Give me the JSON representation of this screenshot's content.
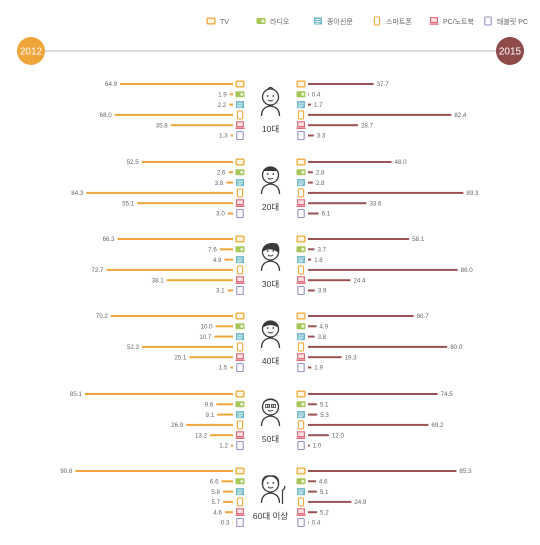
{
  "legend": [
    {
      "icon": "tv-icon",
      "label": "TV",
      "color": "#f2a93b"
    },
    {
      "icon": "radio-icon",
      "label": "라디오",
      "color": "#a6c65a"
    },
    {
      "icon": "newspaper-icon",
      "label": "종이신문",
      "color": "#6bb8c9"
    },
    {
      "icon": "smartphone-icon",
      "label": "스마트폰",
      "color": "#f2a93b"
    },
    {
      "icon": "pc-notebook-icon",
      "label": "PC/노트북",
      "color": "#e0707e"
    },
    {
      "icon": "tablet-pc-icon",
      "label": "태블릿 PC",
      "color": "#9b8fbf"
    }
  ],
  "colors": {
    "left_accent": "#f0a53a",
    "right_accent": "#8f4a4a",
    "left_bar": "#f0a53a",
    "right_bar": "#9a5252",
    "text": "#666666"
  },
  "chart_data": {
    "type": "bar",
    "layout": "diverging",
    "left_label": "2012",
    "right_label": "2015",
    "media": [
      "TV",
      "라디오",
      "종이신문",
      "스마트폰",
      "PC/노트북",
      "태블릿 PC"
    ],
    "groups": [
      {
        "label": "10대",
        "y2012": [
          64.9,
          1.9,
          2.2,
          68.0,
          35.8,
          1.3
        ],
        "y2015": [
          37.7,
          0.4,
          1.7,
          82.4,
          28.7,
          3.3
        ],
        "labels_2012": [
          "64.9",
          "1.9",
          "2.2",
          "68.0",
          "35.8",
          "1.3"
        ],
        "labels_2015": [
          "37.7",
          "0.4",
          "1.7",
          "82.4",
          "28.7",
          "3.3"
        ]
      },
      {
        "label": "20대",
        "y2012": [
          52.5,
          2.6,
          3.8,
          84.3,
          55.1,
          3.0
        ],
        "y2015": [
          48.0,
          2.8,
          2.8,
          89.3,
          33.6,
          6.1
        ],
        "labels_2012": [
          "52.5",
          "2.6",
          "3.8",
          "84.3",
          "55.1",
          "3.0"
        ],
        "labels_2015": [
          "48.0",
          "2.8",
          "2.8",
          "89.3",
          "33.6",
          "6.1"
        ]
      },
      {
        "label": "30대",
        "y2012": [
          66.3,
          7.6,
          4.9,
          72.7,
          38.1,
          3.1
        ],
        "y2015": [
          58.1,
          3.7,
          1.8,
          86.0,
          24.4,
          3.9
        ],
        "labels_2012": [
          "66.3",
          "7.6",
          "4.9",
          "72.7",
          "38.1",
          "3.1"
        ],
        "labels_2015": [
          "58.1",
          "3.7",
          "1.8",
          "86.0",
          "24.4",
          "3.9"
        ]
      },
      {
        "label": "40대",
        "y2012": [
          70.2,
          10.0,
          10.7,
          52.3,
          25.1,
          1.5
        ],
        "y2015": [
          60.7,
          4.9,
          3.8,
          80.0,
          19.3,
          1.9
        ],
        "labels_2012": [
          "70.2",
          "10.0",
          "10.7",
          "52.3",
          "25.1",
          "1.5"
        ],
        "labels_2015": [
          "60.7",
          "4.9",
          "3.8",
          "80.0",
          "19.3",
          "1.9"
        ]
      },
      {
        "label": "50대",
        "y2012": [
          85.1,
          9.6,
          9.1,
          26.9,
          13.2,
          1.2
        ],
        "y2015": [
          74.5,
          5.1,
          5.3,
          69.2,
          12.0,
          1.0
        ],
        "labels_2012": [
          "85.1",
          "9.6",
          "9.1",
          "26.9",
          "13.2",
          "1.2"
        ],
        "labels_2015": [
          "74.5",
          "5.1",
          "5.3",
          "69.2",
          "12.0",
          "1.0"
        ]
      },
      {
        "label": "60대 이상",
        "y2012": [
          90.6,
          6.6,
          5.8,
          5.7,
          4.6,
          0.3
        ],
        "y2015": [
          85.3,
          4.6,
          5.1,
          24.9,
          5.2,
          0.4
        ],
        "labels_2012": [
          "90.6",
          "6.6",
          "5.8",
          "5.7",
          "4.6",
          "0.3"
        ],
        "labels_2015": [
          "85.3",
          "4.6",
          "5.1",
          "24.9",
          "5.2",
          "0.4"
        ]
      }
    ]
  }
}
